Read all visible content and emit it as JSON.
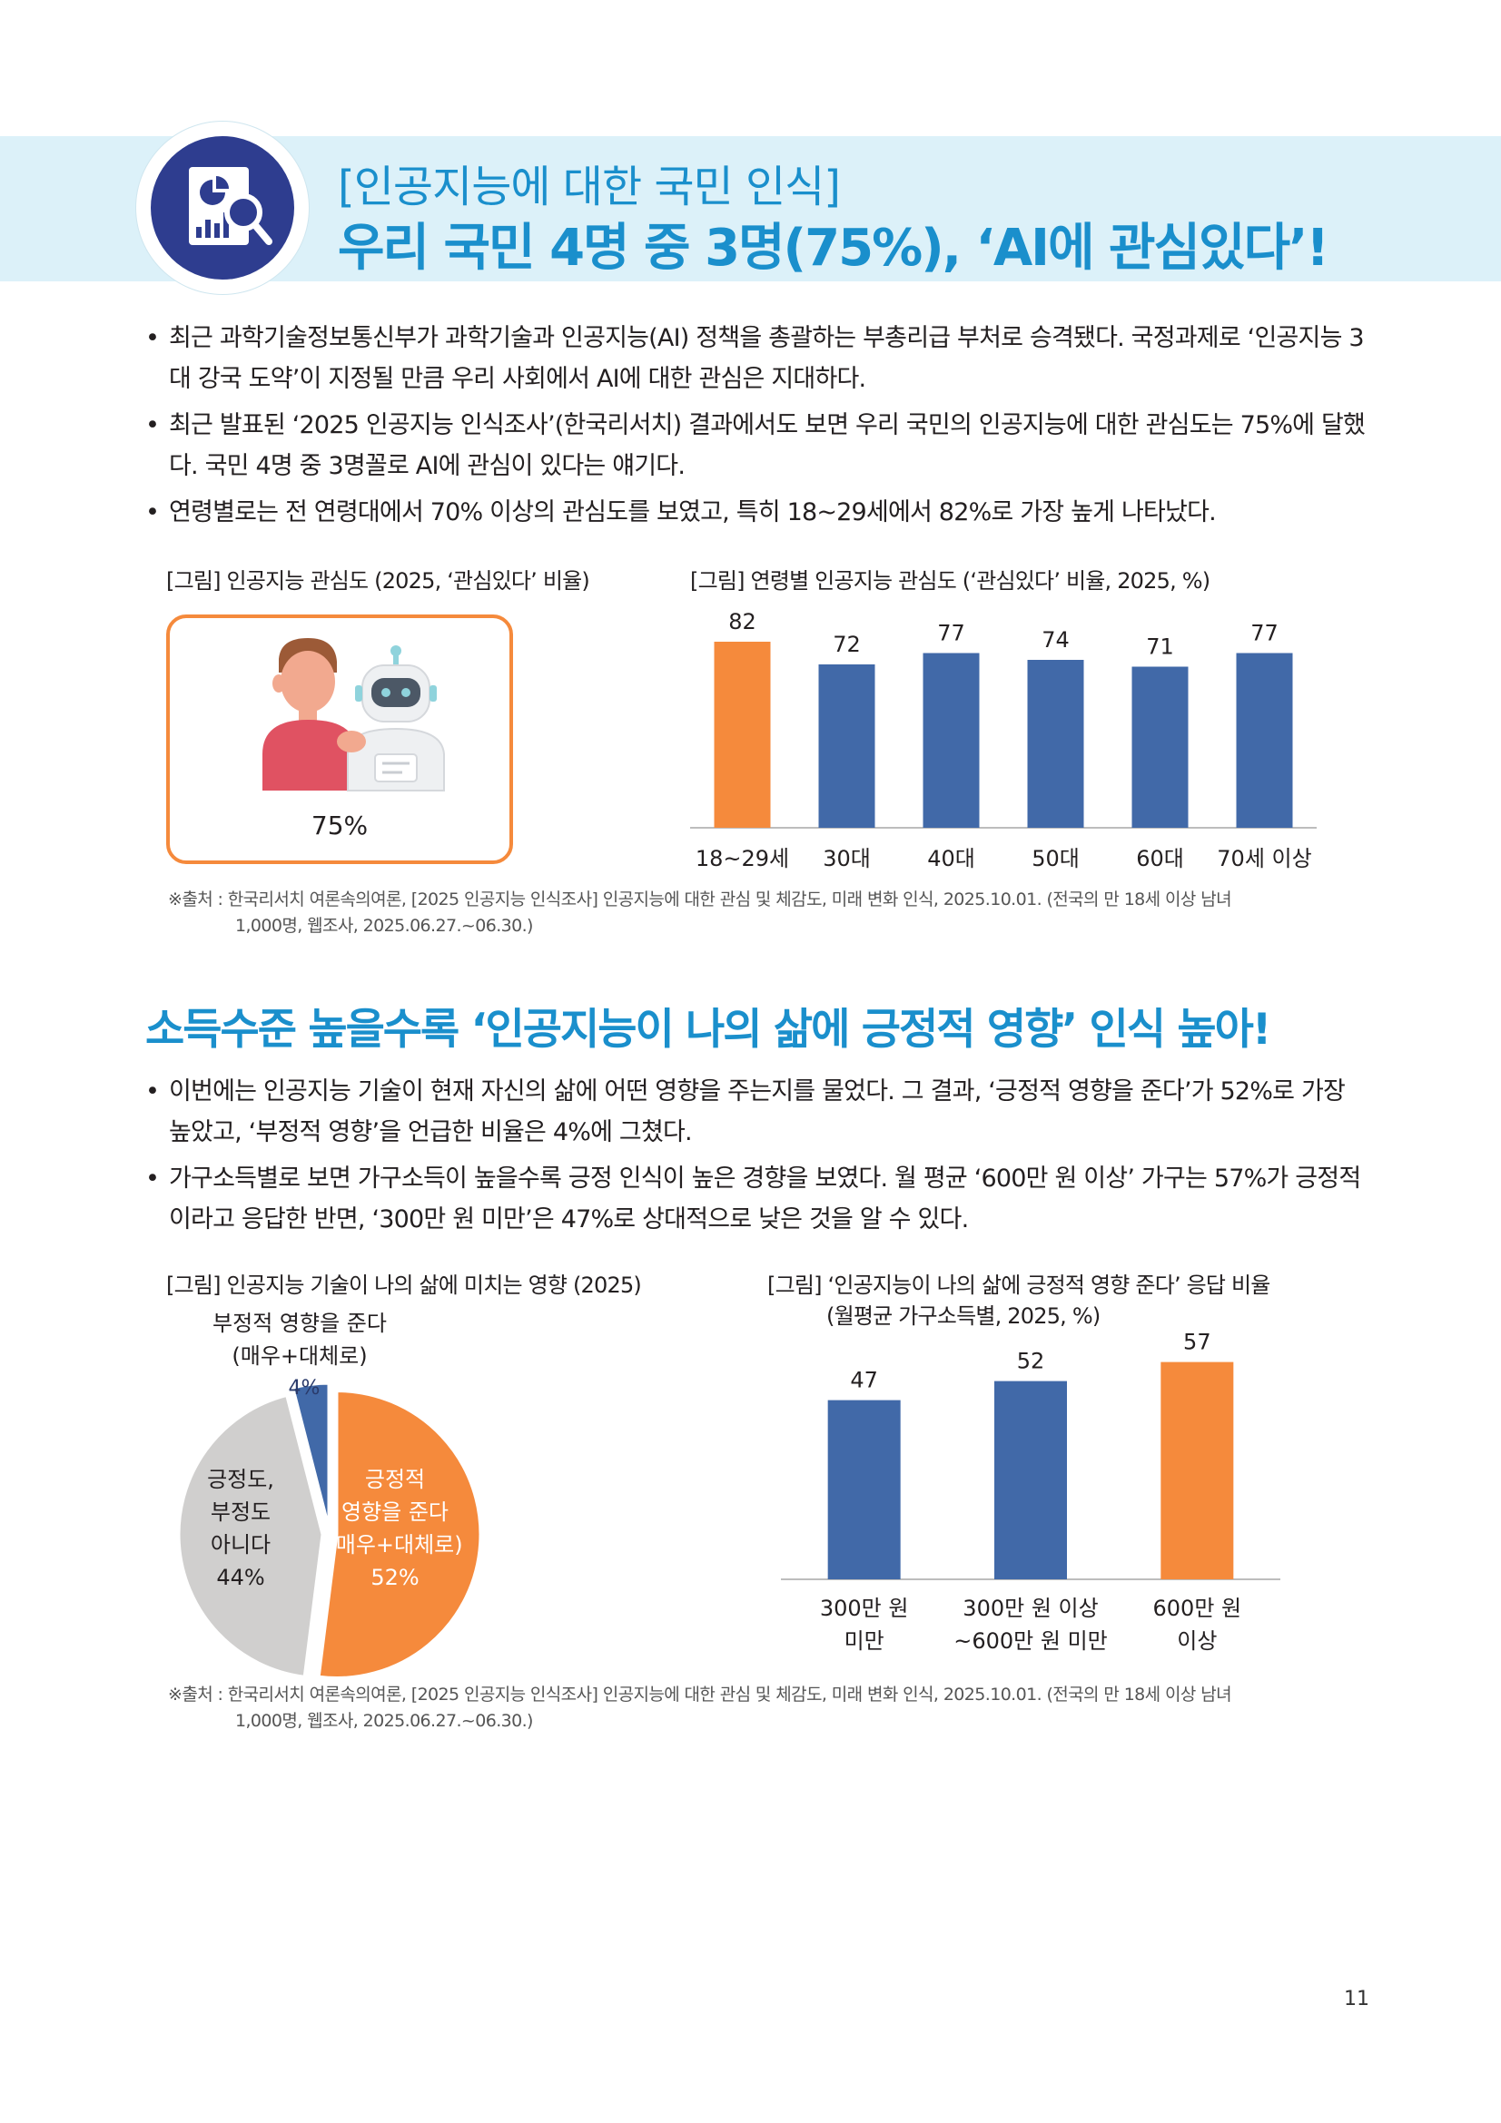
{
  "header": {
    "subtitle": "[인공지능에 대한 국민 인식]",
    "title": "우리 국민 4명 중 3명(75%), ‘AI에 관심있다’!"
  },
  "section1": {
    "bullets": [
      "최근 과학기술정보통신부가 과학기술과 인공지능(AI) 정책을 총괄하는 부총리급 부처로 승격됐다. 국정과제로 ‘인공지능 3대 강국 도약’이 지정될 만큼 우리 사회에서 AI에 대한 관심은 지대하다.",
      "최근 발표된 ‘2025 인공지능 인식조사’(한국리서치) 결과에서도 보면 우리 국민의 인공지능에 대한 관심도는 75%에 달했다. 국민 4명 중 3명꼴로 AI에 관심이 있다는 얘기다.",
      "연령별로는 전 연령대에서 70% 이상의 관심도를 보였고, 특히 18~29세에서 82%로 가장 높게 나타났다."
    ],
    "fig1_caption": "[그림] 인공지능 관심도 (2025, ‘관심있다’ 비율)",
    "fig1_value": "75%",
    "fig2_caption": "[그림] 연령별 인공지능 관심도 (‘관심있다’ 비율, 2025, %)",
    "source_line1": "※출처 : 한국리서치 여론속의여론, [2025 인공지능 인식조사] 인공지능에 대한 관심 및 체감도, 미래 변화 인식, 2025.10.01. (전국의 만 18세 이상 남녀",
    "source_line2": "1,000명, 웹조사, 2025.06.27.~06.30.)"
  },
  "section2": {
    "title": "소득수준 높을수록 ‘인공지능이 나의 삶에 긍정적 영향’ 인식 높아!",
    "bullets": [
      "이번에는 인공지능 기술이 현재 자신의 삶에 어떤 영향을 주는지를 물었다. 그 결과, ‘긍정적 영향을 준다’가 52%로 가장 높았고, ‘부정적 영향’을 언급한 비율은 4%에 그쳤다.",
      "가구소득별로 보면 가구소득이 높을수록 긍정 인식이 높은 경향을 보였다. 월 평균 ‘600만 원 이상’ 가구는 57%가 긍정적이라고 응답한 반면, ‘300만 원 미만’은 47%로 상대적으로 낮은 것을 알 수 있다."
    ],
    "fig3_caption": "[그림] 인공지능 기술이 나의 삶에 미치는 영향 (2025)",
    "fig4_caption_line1": "[그림] ‘인공지능이 나의 삶에 긍정적 영향 준다’ 응답 비율",
    "fig4_caption_line2": "(월평균 가구소득별, 2025, %)",
    "source_line1": "※출처 : 한국리서치 여론속의여론, [2025 인공지능 인식조사] 인공지능에 대한 관심 및 체감도, 미래 변화 인식, 2025.10.01. (전국의 만 18세 이상 남녀",
    "source_line2": "1,000명, 웹조사, 2025.06.27.~06.30.)",
    "pie_labels": {
      "negative_line1": "부정적 영향을 준다",
      "negative_line2": "(매우+대체로)",
      "negative_pct": "4%",
      "neutral_line1": "긍정도,",
      "neutral_line2": "부정도",
      "neutral_line3": "아니다",
      "neutral_pct": "44%",
      "positive_line1": "긍정적",
      "positive_line2": "영향을 준다",
      "positive_line3": "(매우+대체로)",
      "positive_pct": "52%"
    }
  },
  "chart_data": [
    {
      "type": "bar",
      "title": "[그림] 연령별 인공지능 관심도 (‘관심있다’ 비율, 2025, %)",
      "categories": [
        "18~29세",
        "30대",
        "40대",
        "50대",
        "60대",
        "70세 이상"
      ],
      "values": [
        82,
        72,
        77,
        74,
        71,
        77
      ],
      "ylim": [
        0,
        100
      ],
      "highlight_index": 0,
      "colors": {
        "bar": "#4169a8",
        "highlight": "#f58a3c"
      },
      "grid": false
    },
    {
      "type": "pie",
      "title": "[그림] 인공지능 기술이 나의 삶에 미치는 영향 (2025)",
      "slices": [
        {
          "label": "긍정적 영향을 준다 (매우+대체로)",
          "value": 52,
          "color": "#f58a3c"
        },
        {
          "label": "긍정도, 부정도 아니다",
          "value": 44,
          "color": "#d0cfce"
        },
        {
          "label": "부정적 영향을 준다 (매우+대체로)",
          "value": 4,
          "color": "#4169a8"
        }
      ]
    },
    {
      "type": "bar",
      "title": "[그림] ‘인공지능이 나의 삶에 긍정적 영향 준다’ 응답 비율 (월평균 가구소득별, 2025, %)",
      "categories": [
        "300만 원\n미만",
        "300만 원 이상\n~600만 원 미만",
        "600만 원\n이상"
      ],
      "values": [
        47,
        52,
        57
      ],
      "ylim": [
        0,
        100
      ],
      "highlight_index": 2,
      "colors": {
        "bar": "#4169a8",
        "highlight": "#f58a3c"
      },
      "grid": false
    }
  ],
  "page_number": "11"
}
